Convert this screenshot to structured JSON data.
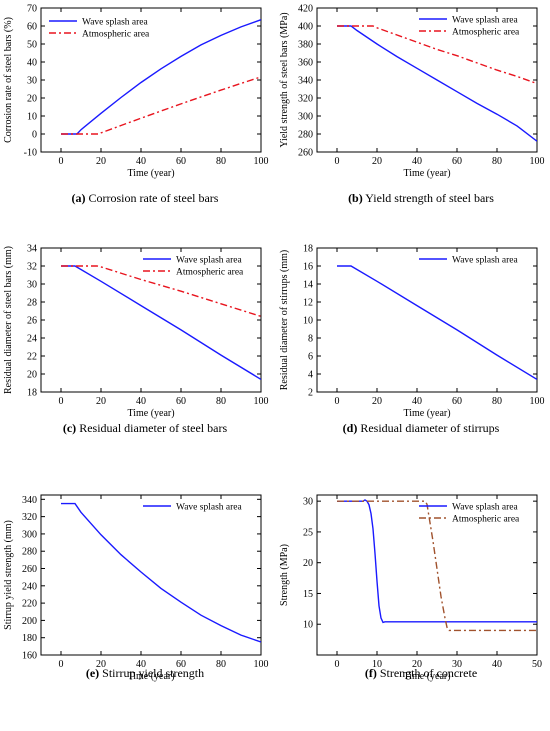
{
  "chart_data": [
    {
      "type": "line",
      "caption": "Corrosion rate of steel bars",
      "caption_prefix": "(a)",
      "xlabel": "Time (year)",
      "ylabel": "Corrosion rate of steel bars (%)",
      "xlim": [
        -10,
        100
      ],
      "ylim": [
        -10,
        70
      ],
      "xticks": [
        0,
        20,
        40,
        60,
        80,
        100
      ],
      "yticks": [
        -10,
        0,
        10,
        20,
        30,
        40,
        50,
        60,
        70
      ],
      "legend_position": "top-left",
      "series": [
        {
          "name": "Wave splash area",
          "color": "#1a1aff",
          "dash": "solid",
          "x": [
            0,
            8,
            10,
            20,
            30,
            40,
            50,
            60,
            70,
            80,
            90,
            100
          ],
          "y": [
            0,
            0,
            2.4,
            11.5,
            20.3,
            28.6,
            36.2,
            43.1,
            49.5,
            54.8,
            59.5,
            63.5
          ]
        },
        {
          "name": "Atmospheric area",
          "color": "#e8141e",
          "dash": "dashdot",
          "x": [
            0,
            19,
            20,
            30,
            40,
            50,
            60,
            70,
            80,
            90,
            100
          ],
          "y": [
            0,
            0,
            0.6,
            4.7,
            8.8,
            12.8,
            16.7,
            20.6,
            24.4,
            28.1,
            31.7
          ]
        }
      ]
    },
    {
      "type": "line",
      "caption": "Yield strength of steel bars",
      "caption_prefix": "(b)",
      "xlabel": "Time (year)",
      "ylabel": "Yield strength of steel bars (MPa)",
      "xlim": [
        -10,
        100
      ],
      "ylim": [
        260,
        420
      ],
      "xticks": [
        0,
        20,
        40,
        60,
        80,
        100
      ],
      "yticks": [
        260,
        280,
        300,
        320,
        340,
        360,
        380,
        400,
        420
      ],
      "legend_position": "top-right",
      "series": [
        {
          "name": "Wave splash area",
          "color": "#1a1aff",
          "dash": "solid",
          "x": [
            0,
            7,
            10,
            20,
            30,
            40,
            50,
            60,
            70,
            80,
            90,
            100
          ],
          "y": [
            400,
            400,
            395,
            380,
            366,
            353,
            340,
            327,
            314,
            302,
            289,
            272
          ]
        },
        {
          "name": "Atmospheric area",
          "color": "#e8141e",
          "dash": "dashdot",
          "x": [
            0,
            18,
            20,
            30,
            40,
            50,
            60,
            70,
            80,
            90,
            100
          ],
          "y": [
            400,
            400,
            398,
            390,
            382,
            374,
            367,
            359,
            351,
            344,
            336
          ]
        }
      ]
    },
    {
      "type": "line",
      "caption": "Residual diameter of steel bars",
      "caption_prefix": "(c)",
      "xlabel": "Time (year)",
      "ylabel": "Residual diameter of steel bars (mm)",
      "xlim": [
        -10,
        100
      ],
      "ylim": [
        18,
        34
      ],
      "xticks": [
        0,
        20,
        40,
        60,
        80,
        100
      ],
      "yticks": [
        18,
        20,
        22,
        24,
        26,
        28,
        30,
        32,
        34
      ],
      "legend_position": "top-right",
      "series": [
        {
          "name": "Wave splash area",
          "color": "#1a1aff",
          "dash": "solid",
          "x": [
            0,
            7,
            20,
            40,
            60,
            80,
            100
          ],
          "y": [
            32,
            32,
            30.3,
            27.6,
            24.9,
            22.1,
            19.4
          ]
        },
        {
          "name": "Atmospheric area",
          "color": "#e8141e",
          "dash": "dashdot",
          "x": [
            0,
            18,
            20,
            40,
            60,
            80,
            100
          ],
          "y": [
            32,
            32,
            31.9,
            30.5,
            29.2,
            27.8,
            26.4
          ]
        }
      ]
    },
    {
      "type": "line",
      "caption": "Residual diameter of stirrups",
      "caption_prefix": "(d)",
      "xlabel": "Time (year)",
      "ylabel": "Residual diameter of stirrups (mm)",
      "xlim": [
        -10,
        100
      ],
      "ylim": [
        2,
        18
      ],
      "xticks": [
        0,
        20,
        40,
        60,
        80,
        100
      ],
      "yticks": [
        2,
        4,
        6,
        8,
        10,
        12,
        14,
        16,
        18
      ],
      "legend_position": "top-right",
      "series": [
        {
          "name": "Wave splash area",
          "color": "#1a1aff",
          "dash": "solid",
          "x": [
            0,
            7,
            20,
            40,
            60,
            80,
            100
          ],
          "y": [
            16,
            16,
            14.3,
            11.6,
            8.9,
            6.1,
            3.4
          ]
        }
      ]
    },
    {
      "type": "line",
      "caption": "Stirrup yield strength",
      "caption_prefix": "(e)",
      "xlabel": "Time (year)",
      "ylabel": "Stirrup yield strength (mm)",
      "xlim": [
        -10,
        100
      ],
      "ylim": [
        160,
        345
      ],
      "xticks": [
        0,
        20,
        40,
        60,
        80,
        100
      ],
      "yticks": [
        160,
        180,
        200,
        220,
        240,
        260,
        280,
        300,
        320,
        340
      ],
      "legend_position": "top-right",
      "series": [
        {
          "name": "Wave splash area",
          "color": "#1a1aff",
          "dash": "solid",
          "x": [
            0,
            7,
            10,
            20,
            30,
            40,
            50,
            60,
            70,
            80,
            90,
            100
          ],
          "y": [
            335,
            335,
            325,
            299,
            276,
            256,
            237,
            221,
            206,
            194,
            183,
            175
          ]
        }
      ]
    },
    {
      "type": "line",
      "caption": "Strength of concrete",
      "caption_prefix": "(f)",
      "xlabel": "Time (year)",
      "ylabel": "Strength (MPa)",
      "xlim": [
        -5,
        50
      ],
      "ylim": [
        5,
        31
      ],
      "xticks": [
        0,
        10,
        20,
        30,
        40,
        50
      ],
      "yticks": [
        10,
        15,
        20,
        25,
        30
      ],
      "legend_position": "top-right",
      "series": [
        {
          "name": "Wave splash area",
          "color": "#1a1aff",
          "dash": "solid",
          "x": [
            0,
            6.5,
            7,
            7.5,
            8,
            8.5,
            9,
            9.5,
            10,
            10.5,
            11,
            11.5,
            12,
            50
          ],
          "y": [
            30,
            30,
            30.2,
            30,
            29.4,
            28,
            25.5,
            21.5,
            17,
            13,
            11,
            10.3,
            10.4,
            10.4
          ]
        },
        {
          "name": "Atmospheric area",
          "color": "#a0522d",
          "dash": "dashdot",
          "x": [
            0,
            22,
            22.5,
            23,
            24,
            25,
            26,
            27,
            27.5,
            28,
            50
          ],
          "y": [
            30,
            30,
            29.5,
            27.5,
            23.5,
            19,
            14.5,
            11,
            9.5,
            9,
            9
          ]
        }
      ]
    }
  ]
}
